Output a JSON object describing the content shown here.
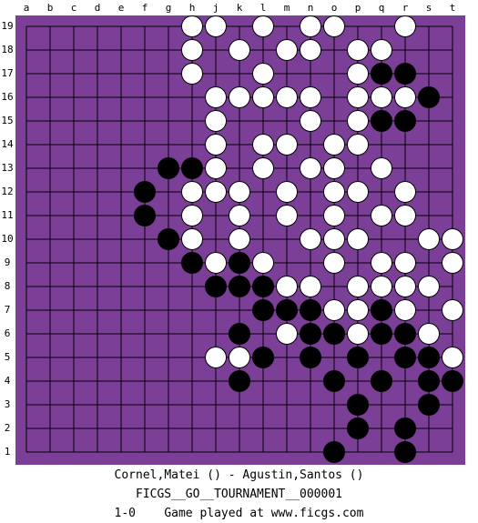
{
  "board": {
    "columns": [
      "a",
      "b",
      "c",
      "d",
      "e",
      "f",
      "g",
      "h",
      "j",
      "k",
      "l",
      "m",
      "n",
      "o",
      "p",
      "q",
      "r",
      "s",
      "t"
    ],
    "rows": [
      "19",
      "18",
      "17",
      "16",
      "15",
      "14",
      "13",
      "12",
      "11",
      "10",
      "9",
      "8",
      "7",
      "6",
      "5",
      "4",
      "3",
      "2",
      "1"
    ],
    "stones": {
      "white": [
        "h19",
        "j19",
        "l19",
        "n19",
        "o19",
        "r19",
        "h18",
        "k18",
        "m18",
        "n18",
        "p18",
        "q18",
        "h17",
        "l17",
        "p17",
        "j16",
        "k16",
        "l16",
        "m16",
        "n16",
        "p16",
        "q16",
        "r16",
        "j15",
        "n15",
        "p15",
        "j14",
        "l14",
        "m14",
        "o14",
        "p14",
        "j13",
        "l13",
        "n13",
        "o13",
        "q13",
        "h12",
        "j12",
        "k12",
        "m12",
        "o12",
        "p12",
        "r12",
        "h11",
        "k11",
        "m11",
        "o11",
        "q11",
        "r11",
        "h10",
        "k10",
        "n10",
        "o10",
        "p10",
        "s10",
        "t10",
        "j9",
        "l9",
        "o9",
        "q9",
        "r9",
        "t9",
        "m8",
        "n8",
        "p8",
        "q8",
        "r8",
        "s8",
        "o7",
        "p7",
        "r7",
        "t7",
        "m6",
        "p6",
        "s6",
        "j5",
        "k5",
        "t5"
      ],
      "black": [
        "q17",
        "r17",
        "s16",
        "q15",
        "r15",
        "g13",
        "h13",
        "f12",
        "f11",
        "g10",
        "h9",
        "k9",
        "j8",
        "k8",
        "l8",
        "l7",
        "m7",
        "n7",
        "q7",
        "k6",
        "n6",
        "o6",
        "q6",
        "r6",
        "l5",
        "n5",
        "p5",
        "r5",
        "s5",
        "k4",
        "o4",
        "q4",
        "s4",
        "t4",
        "p3",
        "s3",
        "p2",
        "r2",
        "o1",
        "r1"
      ]
    }
  },
  "footer": {
    "players": "Cornel,Matei () - Agustin,Santos ()",
    "event": "FICGS__GO__TOURNAMENT__000001",
    "result": "1-0    Game played at www.ficgs.com"
  }
}
